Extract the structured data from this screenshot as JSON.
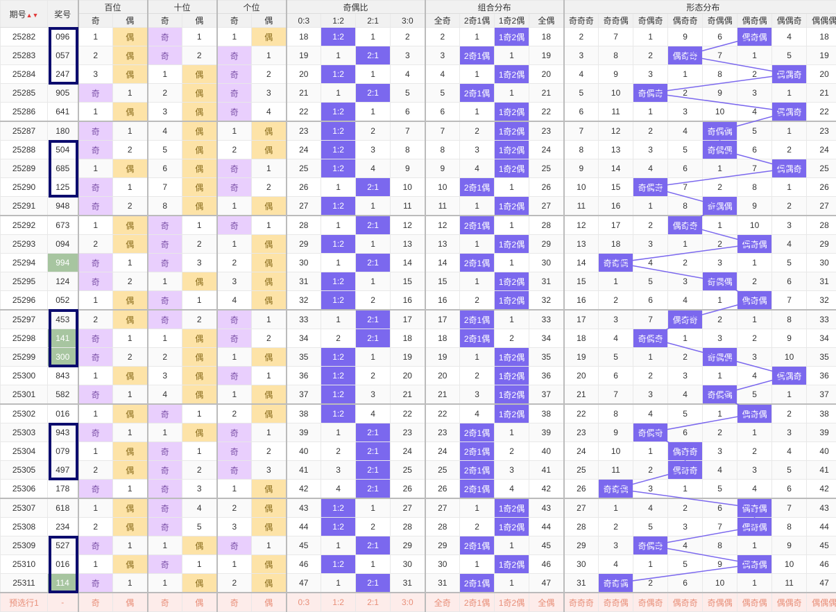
{
  "headers": {
    "period": "期号",
    "prize": "奖号",
    "groups": [
      "百位",
      "十位",
      "个位",
      "奇偶比",
      "组合分布",
      "形态分布"
    ],
    "sub_bai": [
      "奇",
      "偶"
    ],
    "sub_shi": [
      "奇",
      "偶"
    ],
    "sub_ge": [
      "奇",
      "偶"
    ],
    "sub_ratio": [
      "0:3",
      "1:2",
      "2:1",
      "3:0"
    ],
    "sub_combo": [
      "全奇",
      "2奇1偶",
      "1奇2偶",
      "全偶"
    ],
    "sub_shape": [
      "奇奇奇",
      "奇奇偶",
      "奇偶奇",
      "偶奇奇",
      "奇偶偶",
      "偶奇偶",
      "偶偶奇",
      "偶偶偶"
    ]
  },
  "rows": [
    {
      "p": "25282",
      "n": "096",
      "c": [
        "1",
        "偶",
        "奇",
        "1",
        "1",
        "偶",
        "18",
        "1:2",
        "1",
        "2",
        "2",
        "1",
        "1奇2偶",
        "18",
        "2",
        "7",
        "1",
        "9",
        "6",
        "偶奇偶",
        "4",
        "18"
      ]
    },
    {
      "p": "25283",
      "n": "057",
      "c": [
        "2",
        "偶",
        "奇",
        "2",
        "奇",
        "1",
        "19",
        "1",
        "2:1",
        "3",
        "3",
        "2奇1偶",
        "1",
        "19",
        "3",
        "8",
        "2",
        "偶奇奇",
        "7",
        "1",
        "5",
        "19"
      ]
    },
    {
      "p": "25284",
      "n": "247",
      "c": [
        "3",
        "偶",
        "1",
        "偶",
        "奇",
        "2",
        "20",
        "1:2",
        "1",
        "4",
        "4",
        "1",
        "1奇2偶",
        "20",
        "4",
        "9",
        "3",
        "1",
        "8",
        "2",
        "偶偶奇",
        "20"
      ]
    },
    {
      "p": "25285",
      "n": "905",
      "c": [
        "奇",
        "1",
        "2",
        "偶",
        "奇",
        "3",
        "21",
        "1",
        "2:1",
        "5",
        "5",
        "2奇1偶",
        "1",
        "21",
        "5",
        "10",
        "奇偶奇",
        "2",
        "9",
        "3",
        "1",
        "21"
      ]
    },
    {
      "p": "25286",
      "n": "641",
      "c": [
        "1",
        "偶",
        "3",
        "偶",
        "奇",
        "4",
        "22",
        "1:2",
        "1",
        "6",
        "6",
        "1",
        "1奇2偶",
        "22",
        "6",
        "11",
        "1",
        "3",
        "10",
        "4",
        "偶偶奇",
        "22"
      ]
    },
    {
      "p": "25287",
      "n": "180",
      "c": [
        "奇",
        "1",
        "4",
        "偶",
        "1",
        "偶",
        "23",
        "1:2",
        "2",
        "7",
        "7",
        "2",
        "1奇2偶",
        "23",
        "7",
        "12",
        "2",
        "4",
        "奇偶偶",
        "5",
        "1",
        "23"
      ]
    },
    {
      "p": "25288",
      "n": "504",
      "c": [
        "奇",
        "2",
        "5",
        "偶",
        "2",
        "偶",
        "24",
        "1:2",
        "3",
        "8",
        "8",
        "3",
        "1奇2偶",
        "24",
        "8",
        "13",
        "3",
        "5",
        "奇偶偶",
        "6",
        "2",
        "24"
      ]
    },
    {
      "p": "25289",
      "n": "685",
      "c": [
        "1",
        "偶",
        "6",
        "偶",
        "奇",
        "1",
        "25",
        "1:2",
        "4",
        "9",
        "9",
        "4",
        "1奇2偶",
        "25",
        "9",
        "14",
        "4",
        "6",
        "1",
        "7",
        "偶偶奇",
        "25"
      ]
    },
    {
      "p": "25290",
      "n": "125",
      "c": [
        "奇",
        "1",
        "7",
        "偶",
        "奇",
        "2",
        "26",
        "1",
        "2:1",
        "10",
        "10",
        "2奇1偶",
        "1",
        "26",
        "10",
        "15",
        "奇偶奇",
        "7",
        "2",
        "8",
        "1",
        "26"
      ]
    },
    {
      "p": "25291",
      "n": "948",
      "c": [
        "奇",
        "2",
        "8",
        "偶",
        "1",
        "偶",
        "27",
        "1:2",
        "1",
        "11",
        "11",
        "1",
        "1奇2偶",
        "27",
        "11",
        "16",
        "1",
        "8",
        "奇偶偶",
        "9",
        "2",
        "27"
      ]
    },
    {
      "p": "25292",
      "n": "673",
      "c": [
        "1",
        "偶",
        "奇",
        "1",
        "奇",
        "1",
        "28",
        "1",
        "2:1",
        "12",
        "12",
        "2奇1偶",
        "1",
        "28",
        "12",
        "17",
        "2",
        "偶奇奇",
        "1",
        "10",
        "3",
        "28"
      ]
    },
    {
      "p": "25293",
      "n": "094",
      "c": [
        "2",
        "偶",
        "奇",
        "2",
        "1",
        "偶",
        "29",
        "1:2",
        "1",
        "13",
        "13",
        "1",
        "1奇2偶",
        "29",
        "13",
        "18",
        "3",
        "1",
        "2",
        "偶奇偶",
        "4",
        "29"
      ]
    },
    {
      "p": "25294",
      "n": "994",
      "c": [
        "奇",
        "1",
        "奇",
        "3",
        "2",
        "偶",
        "30",
        "1",
        "2:1",
        "14",
        "14",
        "2奇1偶",
        "1",
        "30",
        "14",
        "奇奇偶",
        "4",
        "2",
        "3",
        "1",
        "5",
        "30"
      ]
    },
    {
      "p": "25295",
      "n": "124",
      "c": [
        "奇",
        "2",
        "1",
        "偶",
        "3",
        "偶",
        "31",
        "1:2",
        "1",
        "15",
        "15",
        "1",
        "1奇2偶",
        "31",
        "15",
        "1",
        "5",
        "3",
        "奇偶偶",
        "2",
        "6",
        "31"
      ]
    },
    {
      "p": "25296",
      "n": "052",
      "c": [
        "1",
        "偶",
        "奇",
        "1",
        "4",
        "偶",
        "32",
        "1:2",
        "2",
        "16",
        "16",
        "2",
        "1奇2偶",
        "32",
        "16",
        "2",
        "6",
        "4",
        "1",
        "偶奇偶",
        "7",
        "32"
      ]
    },
    {
      "p": "25297",
      "n": "453",
      "c": [
        "2",
        "偶",
        "奇",
        "2",
        "奇",
        "1",
        "33",
        "1",
        "2:1",
        "17",
        "17",
        "2奇1偶",
        "1",
        "33",
        "17",
        "3",
        "7",
        "偶奇奇",
        "2",
        "1",
        "8",
        "33"
      ]
    },
    {
      "p": "25298",
      "n": "141",
      "c": [
        "奇",
        "1",
        "1",
        "偶",
        "奇",
        "2",
        "34",
        "2",
        "2:1",
        "18",
        "18",
        "2奇1偶",
        "2",
        "34",
        "18",
        "4",
        "奇偶奇",
        "1",
        "3",
        "2",
        "9",
        "34"
      ]
    },
    {
      "p": "25299",
      "n": "300",
      "c": [
        "奇",
        "2",
        "2",
        "偶",
        "1",
        "偶",
        "35",
        "1:2",
        "1",
        "19",
        "19",
        "1",
        "1奇2偶",
        "35",
        "19",
        "5",
        "1",
        "2",
        "奇偶偶",
        "3",
        "10",
        "35"
      ]
    },
    {
      "p": "25300",
      "n": "843",
      "c": [
        "1",
        "偶",
        "3",
        "偶",
        "奇",
        "1",
        "36",
        "1:2",
        "2",
        "20",
        "20",
        "2",
        "1奇2偶",
        "36",
        "20",
        "6",
        "2",
        "3",
        "1",
        "4",
        "偶偶奇",
        "36"
      ]
    },
    {
      "p": "25301",
      "n": "582",
      "c": [
        "奇",
        "1",
        "4",
        "偶",
        "1",
        "偶",
        "37",
        "1:2",
        "3",
        "21",
        "21",
        "3",
        "1奇2偶",
        "37",
        "21",
        "7",
        "3",
        "4",
        "奇偶偶",
        "5",
        "1",
        "37"
      ]
    },
    {
      "p": "25302",
      "n": "016",
      "c": [
        "1",
        "偶",
        "奇",
        "1",
        "2",
        "偶",
        "38",
        "1:2",
        "4",
        "22",
        "22",
        "4",
        "1奇2偶",
        "38",
        "22",
        "8",
        "4",
        "5",
        "1",
        "偶奇偶",
        "2",
        "38"
      ]
    },
    {
      "p": "25303",
      "n": "943",
      "c": [
        "奇",
        "1",
        "1",
        "偶",
        "奇",
        "1",
        "39",
        "1",
        "2:1",
        "23",
        "23",
        "2奇1偶",
        "1",
        "39",
        "23",
        "9",
        "奇偶奇",
        "6",
        "2",
        "1",
        "3",
        "39"
      ]
    },
    {
      "p": "25304",
      "n": "079",
      "c": [
        "1",
        "偶",
        "奇",
        "1",
        "奇",
        "2",
        "40",
        "2",
        "2:1",
        "24",
        "24",
        "2奇1偶",
        "2",
        "40",
        "24",
        "10",
        "1",
        "偶奇奇",
        "3",
        "2",
        "4",
        "40"
      ]
    },
    {
      "p": "25305",
      "n": "497",
      "c": [
        "2",
        "偶",
        "奇",
        "2",
        "奇",
        "3",
        "41",
        "3",
        "2:1",
        "25",
        "25",
        "2奇1偶",
        "3",
        "41",
        "25",
        "11",
        "2",
        "偶奇奇",
        "4",
        "3",
        "5",
        "41"
      ]
    },
    {
      "p": "25306",
      "n": "178",
      "c": [
        "奇",
        "1",
        "奇",
        "3",
        "1",
        "偶",
        "42",
        "4",
        "2:1",
        "26",
        "26",
        "2奇1偶",
        "4",
        "42",
        "26",
        "奇奇偶",
        "3",
        "1",
        "5",
        "4",
        "6",
        "42"
      ]
    },
    {
      "p": "25307",
      "n": "618",
      "c": [
        "1",
        "偶",
        "奇",
        "4",
        "2",
        "偶",
        "43",
        "1:2",
        "1",
        "27",
        "27",
        "1",
        "1奇2偶",
        "43",
        "27",
        "1",
        "4",
        "2",
        "6",
        "偶奇偶",
        "7",
        "43"
      ]
    },
    {
      "p": "25308",
      "n": "234",
      "c": [
        "2",
        "偶",
        "奇",
        "5",
        "3",
        "偶",
        "44",
        "1:2",
        "2",
        "28",
        "28",
        "2",
        "1奇2偶",
        "44",
        "28",
        "2",
        "5",
        "3",
        "7",
        "偶奇偶",
        "8",
        "44"
      ]
    },
    {
      "p": "25309",
      "n": "527",
      "c": [
        "奇",
        "1",
        "1",
        "偶",
        "奇",
        "1",
        "45",
        "1",
        "2:1",
        "29",
        "29",
        "2奇1偶",
        "1",
        "45",
        "29",
        "3",
        "奇偶奇",
        "4",
        "8",
        "1",
        "9",
        "45"
      ]
    },
    {
      "p": "25310",
      "n": "016",
      "c": [
        "1",
        "偶",
        "奇",
        "1",
        "1",
        "偶",
        "46",
        "1:2",
        "1",
        "30",
        "30",
        "1",
        "1奇2偶",
        "46",
        "30",
        "4",
        "1",
        "5",
        "9",
        "偶奇偶",
        "10",
        "46"
      ]
    },
    {
      "p": "25311",
      "n": "114",
      "c": [
        "奇",
        "1",
        "1",
        "偶",
        "2",
        "偶",
        "47",
        "1",
        "2:1",
        "31",
        "31",
        "2奇1偶",
        "1",
        "47",
        "31",
        "奇奇偶",
        "2",
        "6",
        "10",
        "1",
        "11",
        "47"
      ]
    }
  ],
  "preselect": {
    "label": "预选行1",
    "prize": "-",
    "cells": [
      "奇",
      "偶",
      "奇",
      "偶",
      "奇",
      "偶",
      "0:3",
      "1:2",
      "2:1",
      "3:0",
      "全奇",
      "2奇1偶",
      "1奇2偶",
      "全偶",
      "奇奇奇",
      "奇奇偶",
      "奇偶奇",
      "偶奇奇",
      "奇偶偶",
      "偶奇偶",
      "偶偶奇",
      "偶偶偶"
    ]
  },
  "highlight_prize_rows": [
    "25294",
    "25298",
    "25299",
    "25311"
  ],
  "colors": {
    "odd": "#e9cffd",
    "even": "#fde3a7",
    "hit": "#7b68ee",
    "prize_green": "#a7c5a0",
    "box": "#0c0c6e"
  }
}
